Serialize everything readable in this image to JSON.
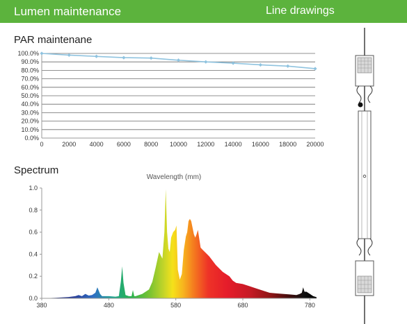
{
  "header": {
    "left_title": "Lumen maintenance",
    "right_title": "Line drawings",
    "bar_color": "#5cb33d"
  },
  "par": {
    "title": "PAR maintenane"
  },
  "spectrum": {
    "title": "Spectrum",
    "x_label": "Wavelength (mm)"
  },
  "chart_data": [
    {
      "type": "line",
      "title": "PAR maintenane",
      "x": [
        0,
        2000,
        4000,
        6000,
        8000,
        10000,
        12000,
        14000,
        16000,
        18000,
        20000
      ],
      "x_ticks": [
        "0",
        "2000",
        "4000",
        "6000",
        "8000",
        "10000",
        "12000",
        "14000",
        "16000",
        "18000",
        "20000"
      ],
      "y_ticks": [
        "0.0%",
        "10.0%",
        "20.0%",
        "30.0%",
        "40.0%",
        "50.0%",
        "60.0%",
        "70.0%",
        "80.0%",
        "90.0%",
        "100.0%"
      ],
      "series": [
        {
          "values": [
            100.0,
            98.0,
            96.5,
            95.0,
            94.5,
            92.0,
            90.0,
            88.5,
            86.5,
            85.0,
            82.0
          ],
          "color": "#8fc3df"
        }
      ],
      "xlim": [
        0,
        20000
      ],
      "ylim": [
        0,
        100
      ],
      "grid": true
    },
    {
      "type": "area",
      "xlabel": "Wavelength (mm)",
      "x_ticks": [
        "380",
        "480",
        "580",
        "680",
        "780"
      ],
      "y_ticks": [
        "0.0",
        "0.2",
        "0.4",
        "0.6",
        "0.8",
        "1.0"
      ],
      "xlim": [
        380,
        790
      ],
      "ylim": [
        0,
        1.0
      ],
      "x": [
        380,
        400,
        420,
        430,
        435,
        440,
        445,
        450,
        455,
        460,
        463,
        465,
        467,
        470,
        480,
        490,
        495,
        498,
        500,
        502,
        505,
        510,
        514,
        516,
        518,
        520,
        530,
        540,
        545,
        550,
        555,
        560,
        563,
        565,
        567,
        569,
        571,
        573,
        576,
        579,
        581,
        583,
        586,
        589,
        592,
        595,
        597,
        599,
        601,
        603,
        605,
        607,
        609,
        611,
        613,
        615,
        617,
        620,
        625,
        630,
        640,
        650,
        660,
        665,
        670,
        680,
        690,
        700,
        710,
        720,
        730,
        740,
        750,
        760,
        765,
        768,
        770,
        772,
        775,
        780,
        785,
        790
      ],
      "series": [
        {
          "values": [
            0.0,
            0.005,
            0.012,
            0.02,
            0.03,
            0.02,
            0.04,
            0.025,
            0.03,
            0.05,
            0.1,
            0.07,
            0.04,
            0.02,
            0.02,
            0.015,
            0.02,
            0.15,
            0.29,
            0.14,
            0.03,
            0.02,
            0.02,
            0.075,
            0.02,
            0.02,
            0.04,
            0.08,
            0.15,
            0.28,
            0.42,
            0.36,
            0.6,
            0.99,
            0.6,
            0.45,
            0.42,
            0.55,
            0.6,
            0.62,
            0.66,
            0.26,
            0.17,
            0.22,
            0.44,
            0.56,
            0.6,
            0.7,
            0.72,
            0.7,
            0.64,
            0.58,
            0.55,
            0.58,
            0.62,
            0.54,
            0.46,
            0.44,
            0.41,
            0.38,
            0.3,
            0.24,
            0.2,
            0.16,
            0.14,
            0.13,
            0.11,
            0.09,
            0.07,
            0.05,
            0.045,
            0.04,
            0.035,
            0.03,
            0.04,
            0.05,
            0.1,
            0.06,
            0.06,
            0.04,
            0.02,
            0.01
          ]
        }
      ]
    }
  ]
}
